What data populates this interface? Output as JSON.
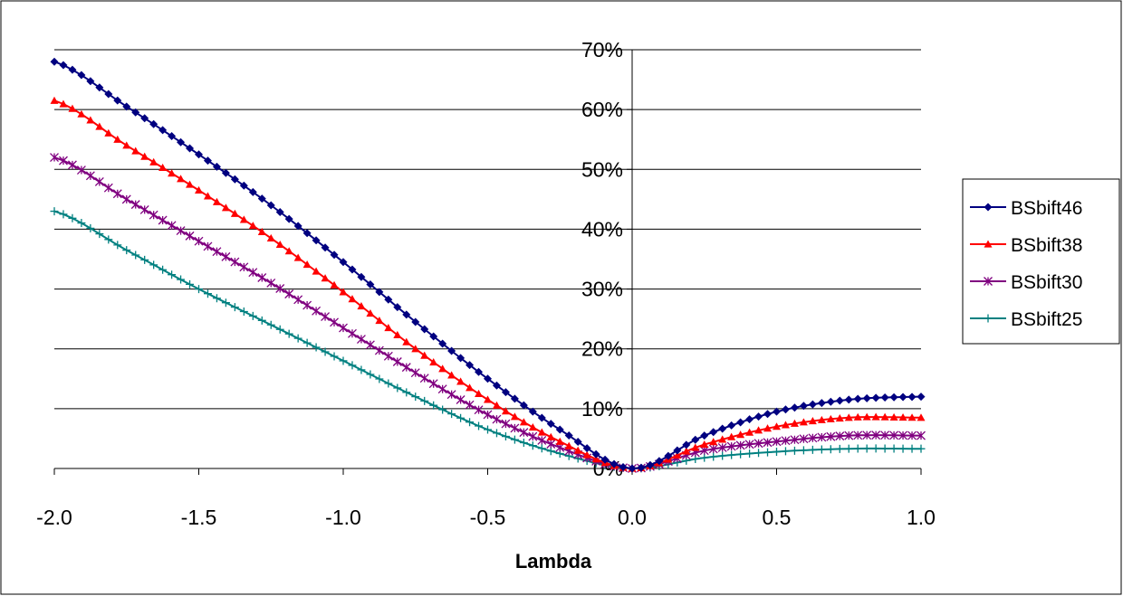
{
  "chart_data": {
    "type": "line",
    "title": "",
    "xlabel": "Lambda",
    "ylabel": "",
    "xlim": [
      -2.0,
      1.0
    ],
    "ylim": [
      0,
      0.7
    ],
    "x_ticks": [
      -2.0,
      -1.5,
      -1.0,
      -0.5,
      0.0,
      0.5,
      1.0
    ],
    "x_tick_labels": [
      "-2.0",
      "-1.5",
      "-1.0",
      "-0.5",
      "0.0",
      "0.5",
      "1.0"
    ],
    "y_ticks": [
      0,
      0.1,
      0.2,
      0.3,
      0.4,
      0.5,
      0.6,
      0.7
    ],
    "y_tick_labels": [
      "0%",
      "10%",
      "20%",
      "30%",
      "40%",
      "50%",
      "60%",
      "70%"
    ],
    "grid": "horizontal",
    "legend_position": "right",
    "x": [
      -2.0,
      -1.75,
      -1.5,
      -1.25,
      -1.0,
      -0.75,
      -0.5,
      -0.25,
      0.0,
      0.25,
      0.5,
      0.75,
      1.0
    ],
    "series": [
      {
        "name": "BSbift46",
        "color": "#000080",
        "marker": "diamond",
        "values": [
          0.68,
          0.605,
          0.525,
          0.44,
          0.345,
          0.245,
          0.15,
          0.065,
          0.0,
          0.055,
          0.095,
          0.115,
          0.12
        ]
      },
      {
        "name": "BSbift38",
        "color": "#ff0000",
        "marker": "triangle",
        "values": [
          0.615,
          0.54,
          0.465,
          0.385,
          0.295,
          0.2,
          0.115,
          0.045,
          0.0,
          0.04,
          0.07,
          0.085,
          0.085
        ]
      },
      {
        "name": "BSbift30",
        "color": "#800080",
        "marker": "star",
        "values": [
          0.52,
          0.45,
          0.38,
          0.31,
          0.235,
          0.16,
          0.09,
          0.035,
          0.0,
          0.03,
          0.045,
          0.055,
          0.055
        ]
      },
      {
        "name": "BSbift25",
        "color": "#008080",
        "marker": "plus",
        "values": [
          0.43,
          0.365,
          0.3,
          0.24,
          0.18,
          0.12,
          0.065,
          0.025,
          0.0,
          0.018,
          0.028,
          0.033,
          0.033
        ]
      }
    ]
  }
}
